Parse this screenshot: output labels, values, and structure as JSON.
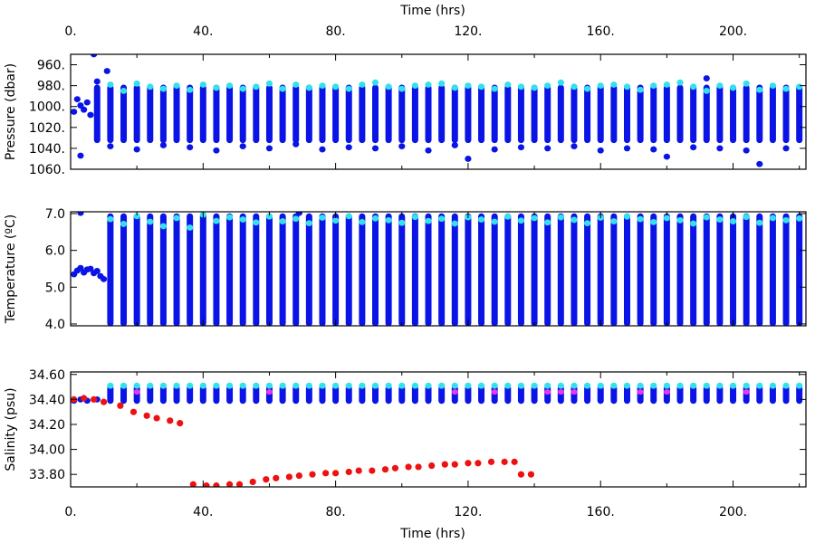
{
  "figure": {
    "top_xlabel": "Time (hrs)",
    "bottom_xlabel": "Time (hrs)"
  },
  "chart_data": [
    {
      "type": "scatter",
      "ylabel": "Pressure (dbar)",
      "x_ticks": [
        "0.",
        "40.",
        "80.",
        "120.",
        "160.",
        "200."
      ],
      "y_ticks": [
        "960.",
        "980.",
        "1000.",
        "1020.",
        "1040.",
        "1060."
      ],
      "xlim": [
        0,
        222
      ],
      "ylim": [
        1060,
        950
      ],
      "y_inverted": true,
      "colors": {
        "profile": "#0a14e6",
        "surface": "#33e0ee"
      },
      "profile_times": [
        8,
        12,
        16,
        20,
        24,
        28,
        32,
        36,
        40,
        44,
        48,
        52,
        56,
        60,
        64,
        68,
        72,
        76,
        80,
        84,
        88,
        92,
        96,
        100,
        104,
        108,
        112,
        116,
        120,
        124,
        128,
        132,
        136,
        140,
        144,
        148,
        152,
        156,
        160,
        164,
        168,
        172,
        176,
        180,
        184,
        188,
        192,
        196,
        200,
        204,
        208,
        212,
        216,
        220
      ],
      "profile_range": [
        982,
        1032
      ],
      "surface_points": [
        {
          "x": 12,
          "y": 979
        },
        {
          "x": 16,
          "y": 985
        },
        {
          "x": 20,
          "y": 978
        },
        {
          "x": 24,
          "y": 981
        },
        {
          "x": 28,
          "y": 983
        },
        {
          "x": 32,
          "y": 980
        },
        {
          "x": 36,
          "y": 984
        },
        {
          "x": 40,
          "y": 979
        },
        {
          "x": 44,
          "y": 982
        },
        {
          "x": 48,
          "y": 980
        },
        {
          "x": 52,
          "y": 983
        },
        {
          "x": 56,
          "y": 981
        },
        {
          "x": 60,
          "y": 978
        },
        {
          "x": 64,
          "y": 983
        },
        {
          "x": 68,
          "y": 979
        },
        {
          "x": 72,
          "y": 982
        },
        {
          "x": 76,
          "y": 980
        },
        {
          "x": 80,
          "y": 981
        },
        {
          "x": 84,
          "y": 983
        },
        {
          "x": 88,
          "y": 979
        },
        {
          "x": 92,
          "y": 977
        },
        {
          "x": 96,
          "y": 981
        },
        {
          "x": 100,
          "y": 983
        },
        {
          "x": 104,
          "y": 980
        },
        {
          "x": 108,
          "y": 979
        },
        {
          "x": 112,
          "y": 978
        },
        {
          "x": 116,
          "y": 982
        },
        {
          "x": 120,
          "y": 980
        },
        {
          "x": 124,
          "y": 981
        },
        {
          "x": 128,
          "y": 983
        },
        {
          "x": 132,
          "y": 979
        },
        {
          "x": 136,
          "y": 981
        },
        {
          "x": 140,
          "y": 982
        },
        {
          "x": 144,
          "y": 980
        },
        {
          "x": 148,
          "y": 977
        },
        {
          "x": 152,
          "y": 981
        },
        {
          "x": 156,
          "y": 983
        },
        {
          "x": 160,
          "y": 980
        },
        {
          "x": 164,
          "y": 979
        },
        {
          "x": 168,
          "y": 981
        },
        {
          "x": 172,
          "y": 984
        },
        {
          "x": 176,
          "y": 980
        },
        {
          "x": 180,
          "y": 979
        },
        {
          "x": 184,
          "y": 977
        },
        {
          "x": 188,
          "y": 981
        },
        {
          "x": 192,
          "y": 985
        },
        {
          "x": 196,
          "y": 980
        },
        {
          "x": 200,
          "y": 982
        },
        {
          "x": 204,
          "y": 978
        },
        {
          "x": 208,
          "y": 984
        },
        {
          "x": 212,
          "y": 980
        },
        {
          "x": 216,
          "y": 983
        },
        {
          "x": 220,
          "y": 981
        }
      ],
      "outliers": [
        {
          "x": 2,
          "y": 993
        },
        {
          "x": 3,
          "y": 999
        },
        {
          "x": 4,
          "y": 1003
        },
        {
          "x": 5,
          "y": 996
        },
        {
          "x": 6,
          "y": 1008
        },
        {
          "x": 1,
          "y": 1005
        },
        {
          "x": 3,
          "y": 1047
        },
        {
          "x": 7,
          "y": 950
        },
        {
          "x": 8,
          "y": 976
        },
        {
          "x": 11,
          "y": 966
        },
        {
          "x": 12,
          "y": 1038
        },
        {
          "x": 20,
          "y": 1041
        },
        {
          "x": 28,
          "y": 1037
        },
        {
          "x": 36,
          "y": 1039
        },
        {
          "x": 44,
          "y": 1042
        },
        {
          "x": 52,
          "y": 1038
        },
        {
          "x": 60,
          "y": 1040
        },
        {
          "x": 68,
          "y": 1036
        },
        {
          "x": 76,
          "y": 1041
        },
        {
          "x": 84,
          "y": 1039
        },
        {
          "x": 92,
          "y": 1040
        },
        {
          "x": 100,
          "y": 1038
        },
        {
          "x": 108,
          "y": 1042
        },
        {
          "x": 116,
          "y": 1037
        },
        {
          "x": 120,
          "y": 1050
        },
        {
          "x": 128,
          "y": 1041
        },
        {
          "x": 136,
          "y": 1039
        },
        {
          "x": 144,
          "y": 1040
        },
        {
          "x": 152,
          "y": 1038
        },
        {
          "x": 160,
          "y": 1042
        },
        {
          "x": 168,
          "y": 1040
        },
        {
          "x": 176,
          "y": 1041
        },
        {
          "x": 180,
          "y": 1048
        },
        {
          "x": 188,
          "y": 1039
        },
        {
          "x": 192,
          "y": 973
        },
        {
          "x": 196,
          "y": 1040
        },
        {
          "x": 204,
          "y": 1042
        },
        {
          "x": 208,
          "y": 1055
        },
        {
          "x": 216,
          "y": 1040
        }
      ]
    },
    {
      "type": "scatter",
      "ylabel": "Temperature (ºC)",
      "y_ticks": [
        "4.0",
        "5.0",
        "6.0",
        "7.0"
      ],
      "xlim": [
        0,
        222
      ],
      "ylim": [
        3.95,
        7.05
      ],
      "colors": {
        "profile": "#0a14e6",
        "surface": "#33e0ee"
      },
      "profile_times": [
        12,
        16,
        20,
        24,
        28,
        32,
        36,
        40,
        44,
        48,
        52,
        56,
        60,
        64,
        68,
        72,
        76,
        80,
        84,
        88,
        92,
        96,
        100,
        104,
        108,
        112,
        116,
        120,
        124,
        128,
        132,
        136,
        140,
        144,
        148,
        152,
        156,
        160,
        164,
        168,
        172,
        176,
        180,
        184,
        188,
        192,
        196,
        200,
        204,
        208,
        212,
        216,
        220
      ],
      "profile_range": [
        4.02,
        6.92
      ],
      "surface_points": [
        {
          "x": 12,
          "y": 6.85
        },
        {
          "x": 16,
          "y": 6.72
        },
        {
          "x": 20,
          "y": 6.93
        },
        {
          "x": 24,
          "y": 6.78
        },
        {
          "x": 28,
          "y": 6.66
        },
        {
          "x": 32,
          "y": 6.88
        },
        {
          "x": 36,
          "y": 6.62
        },
        {
          "x": 40,
          "y": 6.97
        },
        {
          "x": 44,
          "y": 6.8
        },
        {
          "x": 48,
          "y": 6.9
        },
        {
          "x": 52,
          "y": 6.84
        },
        {
          "x": 56,
          "y": 6.76
        },
        {
          "x": 60,
          "y": 6.92
        },
        {
          "x": 64,
          "y": 6.79
        },
        {
          "x": 68,
          "y": 6.86
        },
        {
          "x": 72,
          "y": 6.74
        },
        {
          "x": 76,
          "y": 6.89
        },
        {
          "x": 80,
          "y": 6.81
        },
        {
          "x": 84,
          "y": 6.93
        },
        {
          "x": 88,
          "y": 6.77
        },
        {
          "x": 92,
          "y": 6.87
        },
        {
          "x": 96,
          "y": 6.82
        },
        {
          "x": 100,
          "y": 6.75
        },
        {
          "x": 104,
          "y": 6.91
        },
        {
          "x": 108,
          "y": 6.8
        },
        {
          "x": 112,
          "y": 6.86
        },
        {
          "x": 116,
          "y": 6.73
        },
        {
          "x": 120,
          "y": 6.9
        },
        {
          "x": 124,
          "y": 6.84
        },
        {
          "x": 128,
          "y": 6.78
        },
        {
          "x": 132,
          "y": 6.92
        },
        {
          "x": 136,
          "y": 6.81
        },
        {
          "x": 140,
          "y": 6.88
        },
        {
          "x": 144,
          "y": 6.76
        },
        {
          "x": 148,
          "y": 6.9
        },
        {
          "x": 152,
          "y": 6.83
        },
        {
          "x": 156,
          "y": 6.74
        },
        {
          "x": 160,
          "y": 6.89
        },
        {
          "x": 164,
          "y": 6.79
        },
        {
          "x": 168,
          "y": 6.92
        },
        {
          "x": 172,
          "y": 6.85
        },
        {
          "x": 176,
          "y": 6.77
        },
        {
          "x": 180,
          "y": 6.88
        },
        {
          "x": 184,
          "y": 6.82
        },
        {
          "x": 188,
          "y": 6.73
        },
        {
          "x": 192,
          "y": 6.9
        },
        {
          "x": 196,
          "y": 6.84
        },
        {
          "x": 200,
          "y": 6.79
        },
        {
          "x": 204,
          "y": 6.91
        },
        {
          "x": 208,
          "y": 6.75
        },
        {
          "x": 212,
          "y": 6.88
        },
        {
          "x": 216,
          "y": 6.82
        },
        {
          "x": 220,
          "y": 6.87
        }
      ],
      "outliers": [
        {
          "x": 2,
          "y": 5.45
        },
        {
          "x": 3,
          "y": 5.52
        },
        {
          "x": 4,
          "y": 5.4
        },
        {
          "x": 5,
          "y": 5.48
        },
        {
          "x": 6,
          "y": 5.5
        },
        {
          "x": 7,
          "y": 5.38
        },
        {
          "x": 8,
          "y": 5.44
        },
        {
          "x": 9,
          "y": 5.3
        },
        {
          "x": 10,
          "y": 5.22
        },
        {
          "x": 1,
          "y": 5.35
        },
        {
          "x": 3,
          "y": 7.02
        },
        {
          "x": 69,
          "y": 7.02
        }
      ]
    },
    {
      "type": "scatter",
      "ylabel": "Salinity (psu)",
      "y_ticks": [
        "33.80",
        "34.00",
        "34.20",
        "34.40",
        "34.60"
      ],
      "xlim": [
        0,
        222
      ],
      "ylim": [
        33.7,
        34.62
      ],
      "colors": {
        "profile": "#0a14e6",
        "surface": "#33e0ee",
        "highlight": "#ee33ee",
        "track": "#ee1111"
      },
      "profile_times": [
        12,
        16,
        20,
        24,
        28,
        32,
        36,
        40,
        44,
        48,
        52,
        56,
        60,
        64,
        68,
        72,
        76,
        80,
        84,
        88,
        92,
        96,
        100,
        104,
        108,
        112,
        116,
        120,
        124,
        128,
        132,
        136,
        140,
        144,
        148,
        152,
        156,
        160,
        164,
        168,
        172,
        176,
        180,
        184,
        188,
        192,
        196,
        200,
        204,
        208,
        212,
        216,
        220
      ],
      "profile_range": [
        34.39,
        34.49
      ],
      "surface_y": 34.51,
      "highlight_times": [
        20,
        60,
        116,
        128,
        144,
        148,
        152,
        172,
        180,
        204
      ],
      "highlight_y": 34.46,
      "track_points": [
        {
          "x": 1,
          "y": 34.4
        },
        {
          "x": 4,
          "y": 34.41
        },
        {
          "x": 7,
          "y": 34.4
        },
        {
          "x": 10,
          "y": 34.38
        },
        {
          "x": 15,
          "y": 34.35
        },
        {
          "x": 19,
          "y": 34.3
        },
        {
          "x": 23,
          "y": 34.27
        },
        {
          "x": 26,
          "y": 34.25
        },
        {
          "x": 30,
          "y": 34.23
        },
        {
          "x": 33,
          "y": 34.21
        },
        {
          "x": 37,
          "y": 33.72
        },
        {
          "x": 41,
          "y": 33.71
        },
        {
          "x": 44,
          "y": 33.71
        },
        {
          "x": 48,
          "y": 33.72
        },
        {
          "x": 51,
          "y": 33.72
        },
        {
          "x": 55,
          "y": 33.74
        },
        {
          "x": 59,
          "y": 33.76
        },
        {
          "x": 62,
          "y": 33.77
        },
        {
          "x": 66,
          "y": 33.78
        },
        {
          "x": 69,
          "y": 33.79
        },
        {
          "x": 73,
          "y": 33.8
        },
        {
          "x": 77,
          "y": 33.81
        },
        {
          "x": 80,
          "y": 33.81
        },
        {
          "x": 84,
          "y": 33.82
        },
        {
          "x": 87,
          "y": 33.83
        },
        {
          "x": 91,
          "y": 33.83
        },
        {
          "x": 95,
          "y": 33.84
        },
        {
          "x": 98,
          "y": 33.85
        },
        {
          "x": 102,
          "y": 33.86
        },
        {
          "x": 105,
          "y": 33.86
        },
        {
          "x": 109,
          "y": 33.87
        },
        {
          "x": 113,
          "y": 33.88
        },
        {
          "x": 116,
          "y": 33.88
        },
        {
          "x": 120,
          "y": 33.89
        },
        {
          "x": 123,
          "y": 33.89
        },
        {
          "x": 127,
          "y": 33.9
        },
        {
          "x": 131,
          "y": 33.9
        },
        {
          "x": 134,
          "y": 33.9
        },
        {
          "x": 136,
          "y": 33.8
        },
        {
          "x": 139,
          "y": 33.8
        }
      ],
      "outliers": [
        {
          "x": 1,
          "y": 34.39
        },
        {
          "x": 3,
          "y": 34.4
        },
        {
          "x": 5,
          "y": 34.39
        },
        {
          "x": 8,
          "y": 34.4
        }
      ]
    }
  ]
}
